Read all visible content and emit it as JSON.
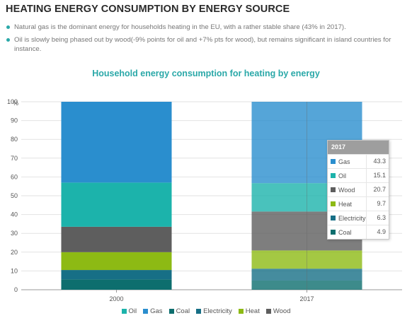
{
  "page": {
    "title": "HEATING ENERGY CONSUMPTION BY ENERGY SOURCE",
    "bullets": [
      "Natural gas is the dominant energy for households heating in the EU, with a rather stable share (43% in 2017).",
      "Oil is slowly being phased out by wood(-9% points for oil and +7% pts for wood), but remains significant in island countries for instance."
    ],
    "accent_color": "#2aa8a8"
  },
  "chart_data": {
    "type": "bar",
    "stacked": true,
    "title": "Household energy consumption for heating by energy",
    "ylabel": "%",
    "xlabel": "",
    "ylim": [
      0,
      100
    ],
    "yticks": [
      0,
      10,
      20,
      30,
      40,
      50,
      60,
      70,
      80,
      90,
      100
    ],
    "categories": [
      "2000",
      "2017"
    ],
    "series": [
      {
        "name": "Coal",
        "color": "#0d6e6e",
        "values": [
          5.5,
          4.9
        ]
      },
      {
        "name": "Electricity",
        "color": "#176f86",
        "values": [
          5,
          6.3
        ]
      },
      {
        "name": "Heat",
        "color": "#8dba14",
        "values": [
          9.5,
          9.7
        ]
      },
      {
        "name": "Wood",
        "color": "#5e5e5e",
        "values": [
          13.5,
          20.7
        ]
      },
      {
        "name": "Oil",
        "color": "#1cb3ab",
        "values": [
          23.5,
          15.1
        ]
      },
      {
        "name": "Gas",
        "color": "#2a8ece",
        "values": [
          43,
          43.3
        ]
      }
    ],
    "legend_order": [
      "Oil",
      "Gas",
      "Coal",
      "Electricity",
      "Heat",
      "Wood"
    ],
    "legend_position": "bottom",
    "grid": true,
    "tooltip": {
      "category": "2017",
      "rows": [
        {
          "name": "Gas",
          "value": "43.3"
        },
        {
          "name": "Oil",
          "value": "15.1"
        },
        {
          "name": "Wood",
          "value": "20.7"
        },
        {
          "name": "Heat",
          "value": "9.7"
        },
        {
          "name": "Electricity",
          "value": "6.3"
        },
        {
          "name": "Coal",
          "value": "4.9"
        }
      ]
    }
  }
}
